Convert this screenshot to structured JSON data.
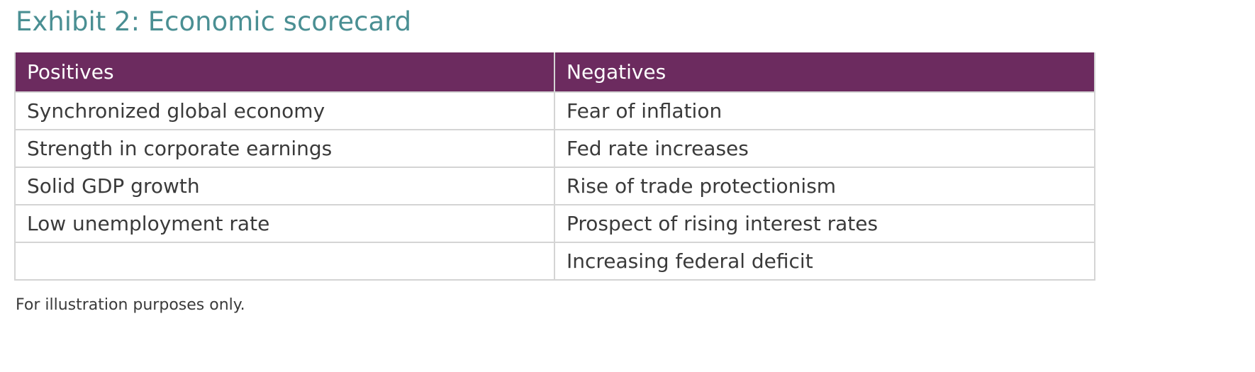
{
  "title": "Exhibit 2: Economic scorecard",
  "table": {
    "headers": [
      "Positives",
      "Negatives"
    ],
    "rows": [
      [
        "Synchronized global economy",
        "Fear of inflation"
      ],
      [
        "Strength in corporate earnings",
        "Fed rate increases"
      ],
      [
        "Solid GDP growth",
        "Rise of trade protectionism"
      ],
      [
        "Low unemployment rate",
        "Prospect of rising interest rates"
      ],
      [
        "",
        "Increasing federal deficit"
      ]
    ]
  },
  "footnote": "For illustration purposes only.",
  "colors": {
    "title": "#4a8f93",
    "header_background": "#6c2b5f",
    "header_text": "#ffffff",
    "body_text": "#3a3a3a",
    "grid": "#d4d4d4"
  }
}
